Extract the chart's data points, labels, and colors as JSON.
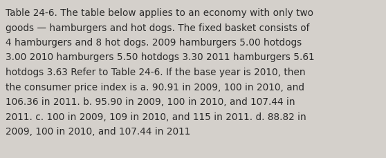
{
  "background_color": "#d4d0cb",
  "text_color": "#2a2a2a",
  "font_size": 9.8,
  "lines": [
    "Table 24-6. The table below applies to an economy with only two",
    "goods — hamburgers and hot dogs. The fixed basket consists of",
    "4 hamburgers and 8 hot dogs. 2009 hamburgers 5.00 hotdogs",
    "3.00 2010 hamburgers 5.50 hotdogs 3.30 2011 hamburgers 5.61",
    "hotdogs 3.63 Refer to Table 24-6. If the base year is 2010, then",
    "the consumer price index is a. 90.91 in 2009, 100 in 2010, and",
    "106.36 in 2011. b. 95.90 in 2009, 100 in 2010, and 107.44 in",
    "2011. c. 100 in 2009, 109 in 2010, and 115 in 2011. d. 88.82 in",
    "2009, 100 in 2010, and 107.44 in 2011"
  ]
}
